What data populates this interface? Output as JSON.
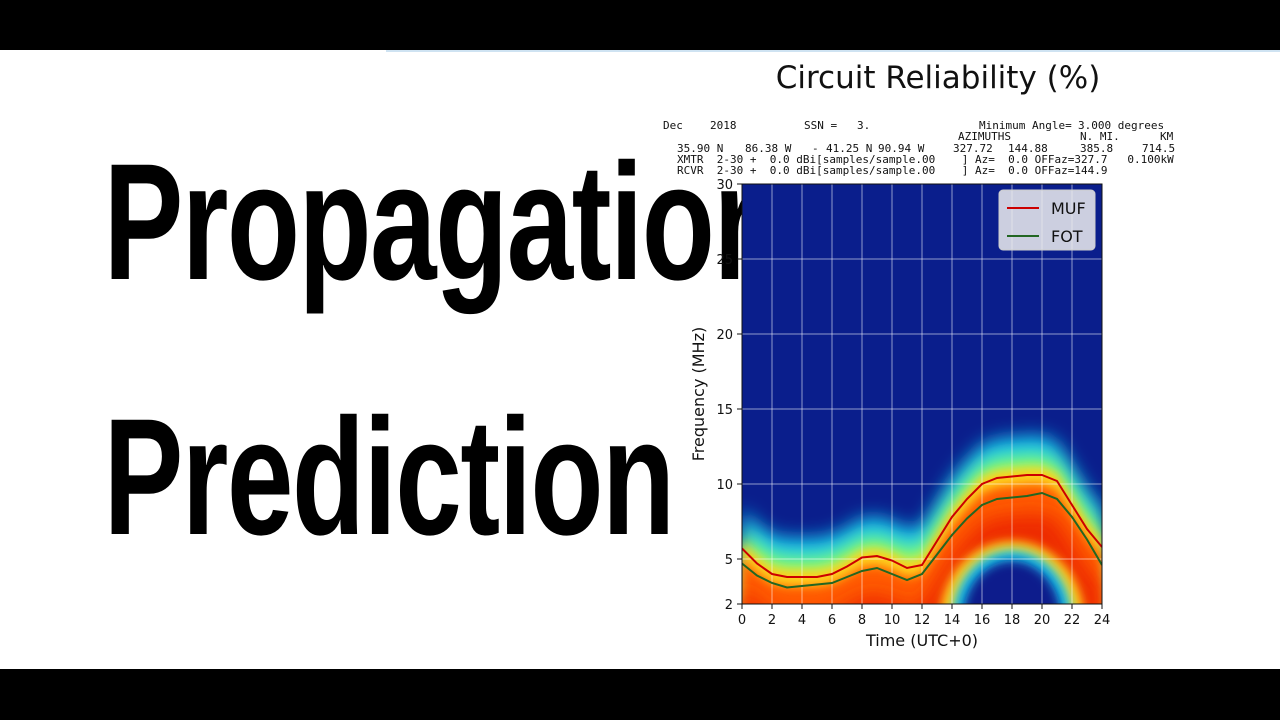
{
  "slide": {
    "headline_line1": "Propagation",
    "headline_line2": "Prediction"
  },
  "chart_data": {
    "type": "heatmap",
    "title": "Circuit Reliability (%)",
    "header": {
      "month": "Dec",
      "year": "2018",
      "ssn_label": "SSN =",
      "ssn_value": "3.",
      "min_angle_label": "Minimum Angle=",
      "min_angle_value": "3.000 degrees",
      "azimuths_label": "AZIMUTHS",
      "nmi_label": "N. MI.",
      "km_label": "KM",
      "tx_lat": "35.90 N",
      "tx_lon": "86.38 W",
      "sep": "-",
      "rx_lat": "41.25 N",
      "rx_lon": "90.94 W",
      "az1": "327.72",
      "az2": "144.88",
      "nmi": "385.8",
      "km": "714.5",
      "xmtr_line": "XMTR  2-30 +  0.0 dBi[samples/sample.00    ] Az=  0.0 OFFaz=327.7   0.100kW",
      "rcvr_line": "RCVR  2-30 +  0.0 dBi[samples/sample.00    ] Az=  0.0 OFFaz=144.9"
    },
    "xlabel": "Time (UTC+0)",
    "ylabel": "Frequency (MHz)",
    "xlim": [
      0,
      24
    ],
    "ylim": [
      2,
      30
    ],
    "xticks": [
      0,
      2,
      4,
      6,
      8,
      10,
      12,
      14,
      16,
      18,
      20,
      22,
      24
    ],
    "yticks": [
      2,
      5,
      10,
      15,
      20,
      25,
      30
    ],
    "grid": true,
    "legend_position": "top-right",
    "colormap": "jet",
    "series": [
      {
        "name": "MUF",
        "color": "#cc0000",
        "x": [
          0,
          1,
          2,
          3,
          4,
          5,
          6,
          7,
          8,
          9,
          10,
          11,
          12,
          13,
          14,
          15,
          16,
          17,
          18,
          19,
          20,
          21,
          22,
          23,
          24
        ],
        "y": [
          5.7,
          4.7,
          4.0,
          3.8,
          3.8,
          3.8,
          4.0,
          4.5,
          5.1,
          5.2,
          4.9,
          4.4,
          4.6,
          6.2,
          7.8,
          9.0,
          10.0,
          10.4,
          10.5,
          10.6,
          10.6,
          10.2,
          8.6,
          7.0,
          5.8
        ]
      },
      {
        "name": "FOT",
        "color": "#226622",
        "x": [
          0,
          1,
          2,
          3,
          4,
          5,
          6,
          7,
          8,
          9,
          10,
          11,
          12,
          13,
          14,
          15,
          16,
          17,
          18,
          19,
          20,
          21,
          22,
          23,
          24
        ],
        "y": [
          4.7,
          3.9,
          3.4,
          3.1,
          3.2,
          3.3,
          3.4,
          3.8,
          4.2,
          4.4,
          4.0,
          3.6,
          4.0,
          5.3,
          6.6,
          7.7,
          8.6,
          9.0,
          9.1,
          9.2,
          9.4,
          9.0,
          7.8,
          6.3,
          4.6
        ]
      }
    ],
    "heatmap_regions": [
      {
        "zone": "high reliability",
        "color": "#ff5a00"
      },
      {
        "zone": "low reliability",
        "color": "#0a1e8c"
      }
    ]
  }
}
